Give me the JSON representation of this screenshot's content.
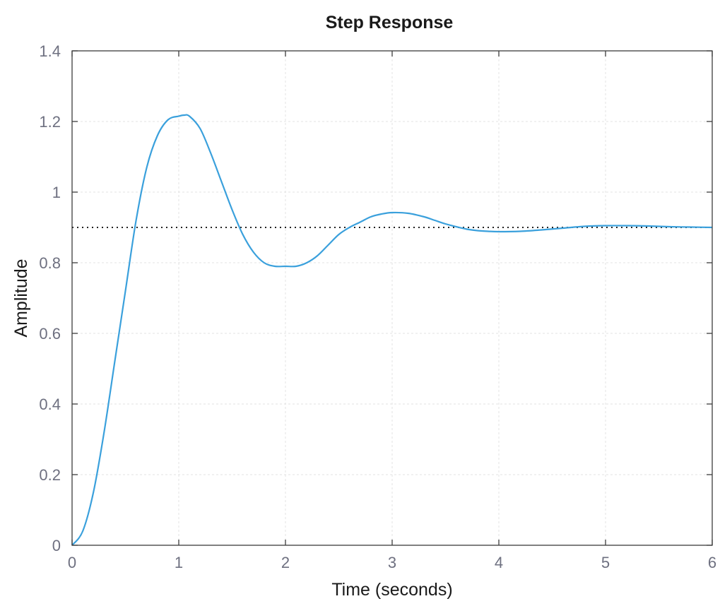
{
  "chart_data": {
    "type": "line",
    "title": "Step Response",
    "xlabel": "Time (seconds)",
    "ylabel": "Amplitude",
    "xlim": [
      0,
      6
    ],
    "ylim": [
      0,
      1.4
    ],
    "xticks": [
      0,
      1,
      2,
      3,
      4,
      5,
      6
    ],
    "xtick_labels": [
      "0",
      "1",
      "2",
      "3",
      "4",
      "5",
      "6"
    ],
    "yticks": [
      0,
      0.2,
      0.4,
      0.6,
      0.8,
      1.0,
      1.2,
      1.4
    ],
    "ytick_labels": [
      "0",
      "0.2",
      "0.4",
      "0.6",
      "0.8",
      "1",
      "1.2",
      "1.4"
    ],
    "grid": true,
    "series": [
      {
        "x": [
          0,
          0.1,
          0.2,
          0.3,
          0.4,
          0.5,
          0.6,
          0.7,
          0.8,
          0.9,
          1.0,
          1.05,
          1.1,
          1.2,
          1.3,
          1.4,
          1.5,
          1.6,
          1.7,
          1.8,
          1.9,
          2.0,
          2.1,
          2.2,
          2.3,
          2.4,
          2.5,
          2.6,
          2.7,
          2.8,
          2.9,
          3.0,
          3.15,
          3.3,
          3.4,
          3.5,
          3.6,
          3.7,
          3.8,
          3.9,
          4.0,
          4.2,
          4.4,
          4.6,
          4.8,
          5.0,
          5.2,
          5.4,
          5.6,
          5.8,
          6.0
        ],
        "y": [
          0,
          0.04,
          0.15,
          0.32,
          0.52,
          0.72,
          0.92,
          1.07,
          1.16,
          1.205,
          1.215,
          1.218,
          1.215,
          1.18,
          1.11,
          1.03,
          0.95,
          0.88,
          0.83,
          0.8,
          0.79,
          0.79,
          0.79,
          0.8,
          0.82,
          0.85,
          0.88,
          0.9,
          0.915,
          0.93,
          0.938,
          0.942,
          0.94,
          0.93,
          0.92,
          0.91,
          0.902,
          0.895,
          0.891,
          0.889,
          0.888,
          0.889,
          0.893,
          0.898,
          0.903,
          0.905,
          0.905,
          0.904,
          0.902,
          0.901,
          0.9
        ],
        "color": "#3aa0dc"
      }
    ],
    "reference_lines": [
      {
        "axis": "y",
        "value": 0.9,
        "style": "dotted",
        "color": "#222222"
      }
    ]
  }
}
